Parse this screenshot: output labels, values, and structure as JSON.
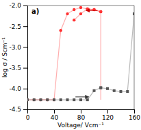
{
  "chart_data": {
    "type": "line",
    "title": "a)",
    "x_label": "Voltage/ Vcm⁻¹",
    "y_label": "log σ / Scm⁻¹",
    "xlim": [
      0,
      160
    ],
    "ylim": [
      -4.5,
      -2.0
    ],
    "xticks": [
      0,
      40,
      80,
      120,
      160
    ],
    "yticks": [
      -4.5,
      {
        "value": -4.0,
        "label": "-4.0"
      },
      -3.5,
      {
        "value": -3.0,
        "label": "-3.0"
      },
      -2.5,
      {
        "value": -2.0,
        "label": "-2.0"
      }
    ],
    "grid": false,
    "series": [
      {
        "color": "#FF3333",
        "marker": "circle",
        "x": [
          0,
          10,
          20,
          30,
          40,
          50,
          60,
          70,
          80,
          90,
          100,
          110
        ],
        "values": [
          -4.27,
          -4.27,
          -4.27,
          -4.27,
          -4.27,
          -2.6,
          -2.2,
          -2.1,
          -2.05,
          -2.08,
          -2.1,
          -2.15
        ]
      },
      {
        "color": "#FF3333",
        "marker": "circle",
        "x": [
          110,
          100,
          90,
          80,
          70
        ],
        "values": [
          -2.15,
          -2.1,
          -2.08,
          -2.2,
          -2.35
        ]
      },
      {
        "color": "#FF3333",
        "marker": "none",
        "x": [
          110,
          110
        ],
        "values": [
          -2.15,
          -4.27
        ]
      },
      {
        "color": "#555555",
        "marker": "square",
        "x": [
          0,
          10,
          20,
          30,
          40,
          50,
          60,
          70,
          80,
          90,
          100,
          110
        ],
        "values": [
          -4.27,
          -4.27,
          -4.27,
          -4.27,
          -4.27,
          -4.27,
          -4.27,
          -4.27,
          -4.27,
          -4.27,
          -4.05,
          -3.98
        ]
      },
      {
        "color": "#555555",
        "marker": "square",
        "x": [
          110,
          120,
          130,
          140,
          150,
          160
        ],
        "values": [
          -3.98,
          -4.0,
          -4.05,
          -4.07,
          -4.07,
          -2.2
        ]
      }
    ],
    "arrows": [
      {
        "color": "#CC0000",
        "x": [
          105,
          88
        ],
        "values": [
          -2.12,
          -2.12
        ]
      },
      {
        "color": "#333333",
        "x": [
          72,
          92
        ],
        "values": [
          -4.2,
          -4.2
        ]
      }
    ]
  }
}
